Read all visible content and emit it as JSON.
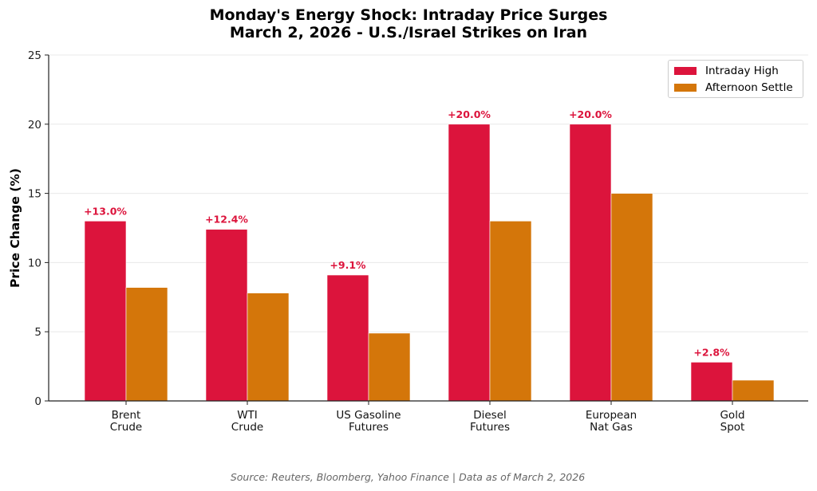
{
  "chart_data": {
    "type": "bar",
    "title": "Monday's Energy Shock: Intraday Price Surges",
    "subtitle": "March 2, 2026 - U.S./Israel Strikes on Iran",
    "xlabel": "",
    "ylabel": "Price Change (%)",
    "ylim": [
      0,
      25
    ],
    "yticks": [
      0,
      5,
      10,
      15,
      20,
      25
    ],
    "grid": true,
    "legend_position": "top-right",
    "categories": [
      [
        "Brent",
        "Crude"
      ],
      [
        "WTI",
        "Crude"
      ],
      [
        "US Gasoline",
        "Futures"
      ],
      [
        "Diesel",
        "Futures"
      ],
      [
        "European",
        "Nat Gas"
      ],
      [
        "Gold",
        "Spot"
      ]
    ],
    "series": [
      {
        "name": "Intraday High",
        "color": "#DC143C",
        "values": [
          13.0,
          12.4,
          9.1,
          20.0,
          20.0,
          2.8
        ],
        "labels": [
          "+13.0%",
          "+12.4%",
          "+9.1%",
          "+20.0%",
          "+20.0%",
          "+2.8%"
        ]
      },
      {
        "name": "Afternoon Settle",
        "color": "#D4760A",
        "values": [
          8.2,
          7.8,
          4.9,
          13.0,
          15.0,
          1.5
        ]
      }
    ],
    "source": "Source: Reuters, Bloomberg, Yahoo Finance | Data as of March 2, 2026"
  }
}
